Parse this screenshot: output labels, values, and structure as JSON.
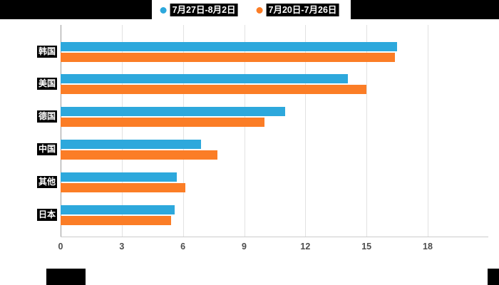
{
  "legend": {
    "items": [
      {
        "label": "7月27日-8月2日",
        "color": "#2DA8DC"
      },
      {
        "label": "7月20日-7月26日",
        "color": "#FB7D26"
      }
    ]
  },
  "chart_data": {
    "type": "bar",
    "orientation": "horizontal",
    "title": "",
    "categories": [
      "韩国",
      "美国",
      "德国",
      "中国",
      "其他",
      "日本"
    ],
    "series": [
      {
        "name": "7月27日-8月2日",
        "color": "#2DA8DC",
        "values": [
          16.5,
          14.1,
          11.0,
          6.9,
          5.7,
          5.6
        ]
      },
      {
        "name": "7月20日-7月26日",
        "color": "#FB7D26",
        "values": [
          16.4,
          15.0,
          10.0,
          7.7,
          6.1,
          5.4
        ]
      }
    ],
    "xlim": [
      0,
      18
    ],
    "xticks": [
      0,
      3,
      6,
      9,
      12,
      15,
      18
    ],
    "xtick_labels": [
      "0",
      "3",
      "6",
      "9",
      "12",
      "15",
      "18"
    ],
    "grid": true,
    "legend_position": "top"
  },
  "colors": {
    "background": "#ffffff",
    "patch": "#000000",
    "gridline": "#e2e2e2",
    "axis": "#9a9a9a",
    "tick_text": "#4d4d4d"
  }
}
